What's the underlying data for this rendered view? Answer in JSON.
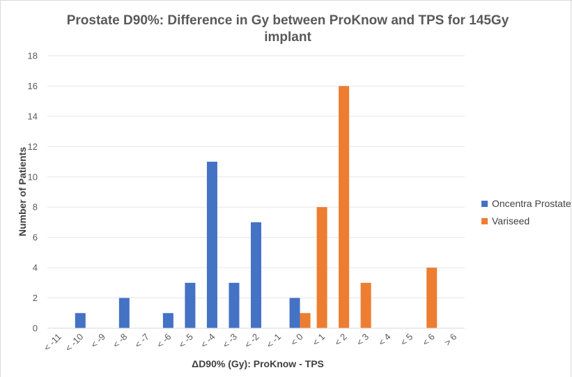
{
  "chart_data": {
    "type": "bar",
    "title_lines": [
      "Prostate D90%: Difference in Gy between ProKnow and TPS for 145Gy",
      "implant"
    ],
    "xlabel": "ΔD90% (Gy): ProKnow - TPS",
    "ylabel": "Number of Patients",
    "categories": [
      "< -11",
      "< -10",
      "< -9",
      "< -8",
      "< -7",
      "< -6",
      "< -5",
      "< -4",
      "< -3",
      "< -2",
      "< -1",
      "< 0",
      "< 1",
      "< 2",
      "< 3",
      "< 4",
      "< 5",
      "< 6",
      "> 6"
    ],
    "series": [
      {
        "name": "Oncentra Prostate",
        "color": "#4472c4",
        "values": [
          0,
          1,
          0,
          2,
          0,
          1,
          3,
          11,
          3,
          7,
          0,
          2,
          0,
          0,
          0,
          0,
          0,
          0,
          0
        ]
      },
      {
        "name": "Variseed",
        "color": "#ed7d31",
        "values": [
          0,
          0,
          0,
          0,
          0,
          0,
          0,
          0,
          0,
          0,
          0,
          1,
          8,
          16,
          3,
          0,
          0,
          4,
          0
        ]
      }
    ],
    "ylim": [
      0,
      18
    ],
    "ytick_step": 2,
    "grid": true,
    "legend_position": "right"
  }
}
